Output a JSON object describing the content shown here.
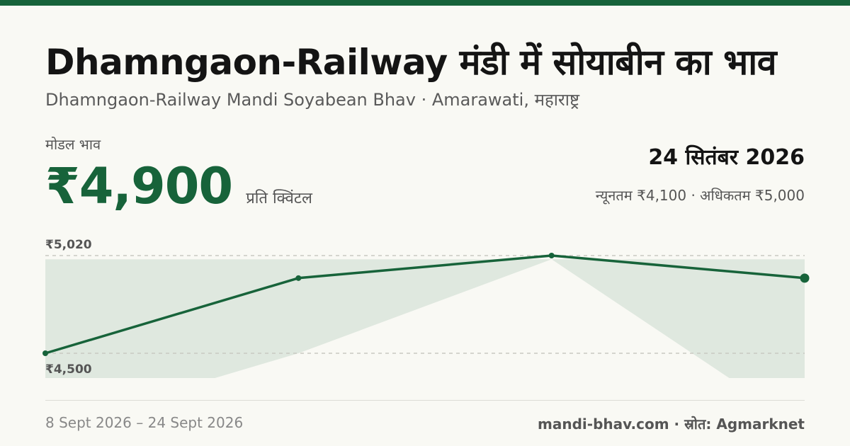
{
  "title": "Dhamngaon-Railway मंडी में सोयाबीन का भाव",
  "subtitle": "Dhamngaon-Railway Mandi Soyabean Bhav · Amarawati, महाराष्ट्र",
  "modal_label": "मोडल भाव",
  "modal_price": "₹4,900",
  "unit": "प्रति क्विंटल",
  "date": "24 सितंबर 2026",
  "min_max": "न्यूनतम ₹4,100 · अधिकतम ₹5,000",
  "footer": {
    "date_range": "8 Sept 2026 – 24 Sept 2026",
    "source": "mandi-bhav.com · स्रोत: Agmarknet"
  },
  "colors": {
    "accent": "#17633a",
    "band": "#dfe8df"
  },
  "chart_data": {
    "type": "line",
    "y_tick_labels": [
      "₹5,020",
      "₹4,500"
    ],
    "y_ticks": [
      5020,
      4500
    ],
    "ylim": [
      4400,
      5050
    ],
    "series": [
      {
        "values": [
          4500,
          4900,
          5020,
          4900
        ]
      }
    ],
    "band": {
      "upper": [
        5000,
        5000,
        5000,
        5000
      ],
      "lower": [
        4100,
        4500,
        5000,
        4100
      ]
    },
    "grid": "dashed at y ticks"
  }
}
